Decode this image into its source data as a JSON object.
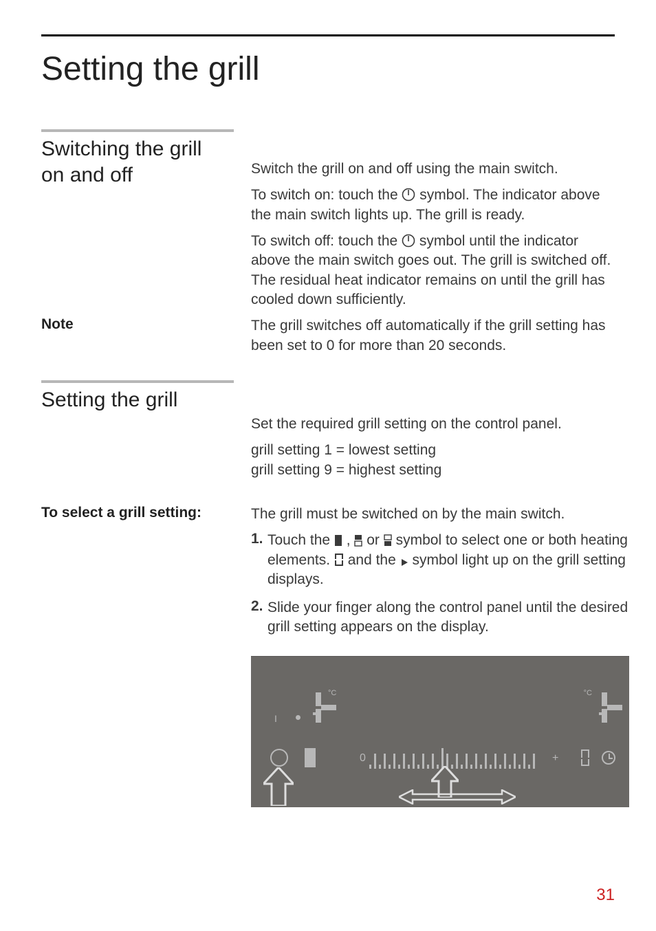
{
  "page_title": "Setting the grill",
  "page_number": "31",
  "sections": {
    "switch": {
      "heading_l1": "Switching the grill",
      "heading_l2": "on and off",
      "p1": "Switch the grill on and off using the main switch.",
      "p2a": "To switch on: touch the ",
      "p2b": " symbol. The indicator above the main switch lights up. The grill is ready.",
      "p3a": "To switch off: touch the ",
      "p3b": " symbol until the indicator above the main switch goes out. The grill is switched off. The residual heat indicator remains on until the grill has cooled down sufficiently."
    },
    "note": {
      "label": "Note",
      "text": "The grill switches off automatically if the grill setting has been set to 0 for more than 20 seconds."
    },
    "setting": {
      "heading": "Setting the grill",
      "p1": "Set the required grill setting on the control panel.",
      "p2": "grill setting 1 = lowest setting",
      "p3": "grill setting 9 = highest setting"
    },
    "select": {
      "label": "To select a grill setting:",
      "intro": "The grill must be switched on by the main switch.",
      "step1a": "Touch the ",
      "step1b": " , ",
      "step1c": " or ",
      "step1d": " symbol to select one or both heating elements. ",
      "step1e": " and the ",
      "step1f": " symbol light up on the grill setting displays.",
      "step2": "Slide your finger along the control panel until the desired grill setting appears on the display."
    }
  },
  "panel": {
    "label_I": "I",
    "deg": "°C",
    "zero": "0",
    "plus": "+",
    "slider_heights": [
      6,
      22,
      6,
      22,
      6,
      22,
      6,
      22,
      6,
      22,
      6,
      22,
      6,
      22,
      6,
      30,
      22,
      6,
      22,
      6,
      22,
      6,
      22,
      6,
      22,
      6,
      22,
      6,
      22,
      6,
      22,
      6,
      22,
      6,
      22
    ],
    "colors": {
      "bg": "#6a6865",
      "fg": "#b8b8b8",
      "page_num": "#c22"
    }
  }
}
